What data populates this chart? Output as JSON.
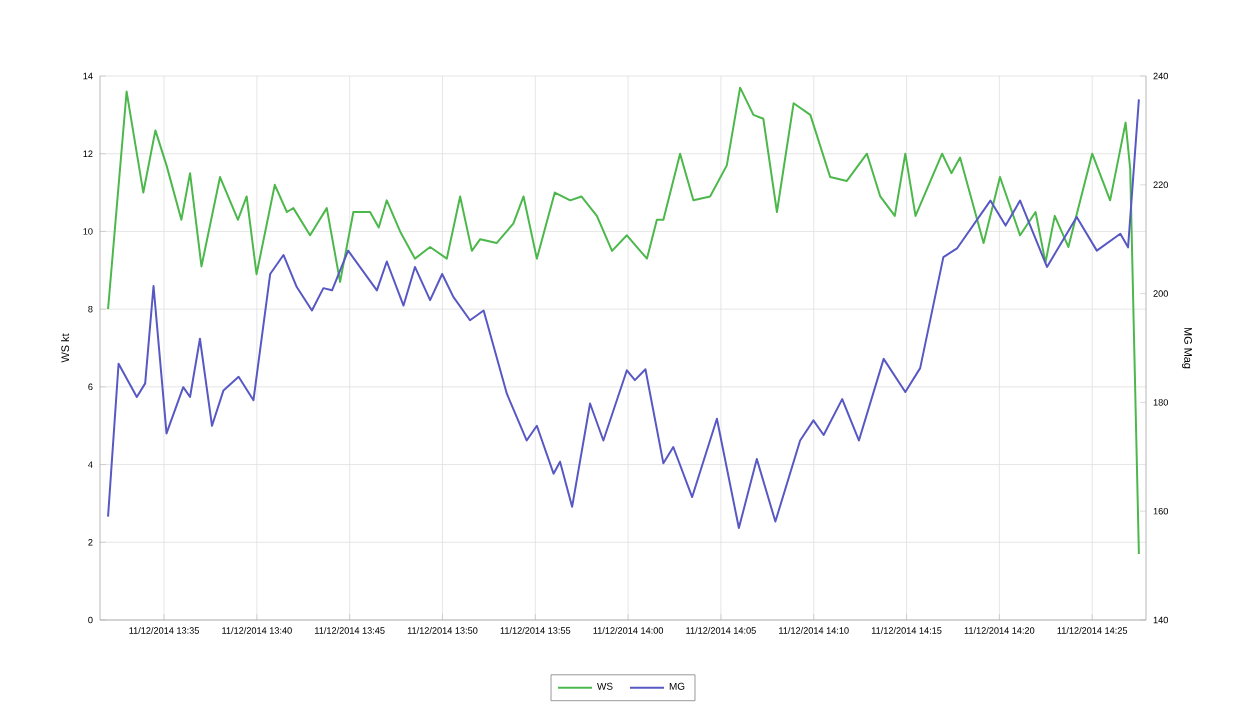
{
  "chart_data": {
    "type": "line",
    "ylabel": "WS kt",
    "y2label": "MG Mag",
    "xlim": [
      "2014-11-12T13:31:33",
      "2014-11-12T14:27:54"
    ],
    "xticks": [
      {
        "value": "2014-11-12T13:35",
        "label": "11/12/2014 13:35"
      },
      {
        "value": "2014-11-12T13:40",
        "label": "11/12/2014 13:40"
      },
      {
        "value": "2014-11-12T13:45",
        "label": "11/12/2014 13:45"
      },
      {
        "value": "2014-11-12T13:50",
        "label": "11/12/2014 13:50"
      },
      {
        "value": "2014-11-12T13:55",
        "label": "11/12/2014 13:55"
      },
      {
        "value": "2014-11-12T14:00",
        "label": "11/12/2014 14:00"
      },
      {
        "value": "2014-11-12T14:05",
        "label": "11/12/2014 14:05"
      },
      {
        "value": "2014-11-12T14:10",
        "label": "11/12/2014 14:10"
      },
      {
        "value": "2014-11-12T14:15",
        "label": "11/12/2014 14:15"
      },
      {
        "value": "2014-11-12T14:20",
        "label": "11/12/2014 14:20"
      },
      {
        "value": "2014-11-12T14:25",
        "label": "11/12/2014 14:25"
      }
    ],
    "ylim": [
      0,
      14
    ],
    "yticks": [
      0,
      2,
      4,
      6,
      8,
      10,
      12,
      14
    ],
    "y2lim": [
      140,
      240
    ],
    "y2ticks": [
      140,
      160,
      180,
      200,
      220,
      240
    ],
    "grid": true,
    "legend": "bottom",
    "series": [
      {
        "name": "WS",
        "color": "#4cb84c",
        "x": [
          "2014-11-12T13:31:59",
          "2014-11-12T13:32:59",
          "2014-11-12T13:33:53",
          "2014-11-12T13:34:32",
          "2014-11-12T13:35:08",
          "2014-11-12T13:35:56",
          "2014-11-12T13:36:24",
          "2014-11-12T13:37:01",
          "2014-11-12T13:38:01",
          "2014-11-12T13:38:59",
          "2014-11-12T13:39:27",
          "2014-11-12T13:39:59",
          "2014-11-12T13:40:58",
          "2014-11-12T13:41:37",
          "2014-11-12T13:41:58",
          "2014-11-12T13:42:52",
          "2014-11-12T13:43:46",
          "2014-11-12T13:44:29",
          "2014-11-12T13:45:12",
          "2014-11-12T13:46:06",
          "2014-11-12T13:46:34",
          "2014-11-12T13:47:00",
          "2014-11-12T13:47:43",
          "2014-11-12T13:48:31",
          "2014-11-12T13:49:20",
          "2014-11-12T13:50:14",
          "2014-11-12T13:50:57",
          "2014-11-12T13:51:35",
          "2014-11-12T13:52:02",
          "2014-11-12T13:52:55",
          "2014-11-12T13:53:49",
          "2014-11-12T13:54:22",
          "2014-11-12T13:55:05",
          "2014-11-12T13:56:03",
          "2014-11-12T13:56:53",
          "2014-11-12T13:57:29",
          "2014-11-12T13:58:19",
          "2014-11-12T13:59:08",
          "2014-11-12T13:59:56",
          "2014-11-12T14:00:39",
          "2014-11-12T14:01:01",
          "2014-11-12T14:01:33",
          "2014-11-12T14:01:54",
          "2014-11-12T14:02:48",
          "2014-11-12T14:03:31",
          "2014-11-12T14:04:25",
          "2014-11-12T14:05:19",
          "2014-11-12T14:06:02",
          "2014-11-12T14:06:45",
          "2014-11-12T14:07:17",
          "2014-11-12T14:08:01",
          "2014-11-12T14:08:55",
          "2014-11-12T14:09:49",
          "2014-11-12T14:10:53",
          "2014-11-12T14:11:47",
          "2014-11-12T14:12:52",
          "2014-11-12T14:13:35",
          "2014-11-12T14:14:22",
          "2014-11-12T14:14:56",
          "2014-11-12T14:15:29",
          "2014-11-12T14:16:55",
          "2014-11-12T14:17:25",
          "2014-11-12T14:17:53",
          "2014-11-12T14:19:09",
          "2014-11-12T14:20:02",
          "2014-11-12T14:21:07",
          "2014-11-12T14:21:57",
          "2014-11-12T14:22:29",
          "2014-11-12T14:22:59",
          "2014-11-12T14:23:43",
          "2014-11-12T14:25:00",
          "2014-11-12T14:25:58",
          "2014-11-12T14:26:48",
          "2014-11-12T14:27:03",
          "2014-11-12T14:27:31"
        ],
        "values": [
          8.0,
          13.6,
          11.0,
          12.6,
          11.7,
          10.3,
          11.5,
          9.1,
          11.4,
          10.3,
          10.9,
          8.9,
          11.2,
          10.5,
          10.6,
          9.9,
          10.6,
          8.7,
          10.5,
          10.5,
          10.1,
          10.8,
          10.0,
          9.3,
          9.6,
          9.3,
          10.9,
          9.5,
          9.8,
          9.7,
          10.2,
          10.9,
          9.3,
          11.0,
          10.8,
          10.9,
          10.4,
          9.5,
          9.9,
          9.5,
          9.3,
          10.3,
          10.3,
          12.0,
          10.8,
          10.9,
          11.7,
          13.7,
          13.0,
          12.9,
          10.5,
          13.3,
          13.0,
          11.4,
          11.3,
          12.0,
          10.9,
          10.4,
          12.0,
          10.4,
          12.0,
          11.5,
          11.9,
          9.7,
          11.4,
          9.9,
          10.5,
          9.2,
          10.4,
          9.6,
          12.0,
          10.8,
          12.8,
          11.6,
          1.7
        ]
      },
      {
        "name": "MG",
        "color": "#5858c4",
        "axis": "y2",
        "x": [
          "2014-11-12T13:31:59",
          "2014-11-12T13:32:33",
          "2014-11-12T13:33:32",
          "2014-11-12T13:33:59",
          "2014-11-12T13:34:26",
          "2014-11-12T13:35:08",
          "2014-11-12T13:36:02",
          "2014-11-12T13:36:24",
          "2014-11-12T13:36:56",
          "2014-11-12T13:37:35",
          "2014-11-12T13:38:12",
          "2014-11-12T13:39:01",
          "2014-11-12T13:39:49",
          "2014-11-12T13:40:43",
          "2014-11-12T13:41:26",
          "2014-11-12T13:42:09",
          "2014-11-12T13:42:58",
          "2014-11-12T13:43:35",
          "2014-11-12T13:44:03",
          "2014-11-12T13:44:55",
          "2014-11-12T13:46:28",
          "2014-11-12T13:47:00",
          "2014-11-12T13:47:54",
          "2014-11-12T13:48:31",
          "2014-11-12T13:49:20",
          "2014-11-12T13:49:59",
          "2014-11-12T13:50:35",
          "2014-11-12T13:51:29",
          "2014-11-12T13:52:13",
          "2014-11-12T13:53:28",
          "2014-11-12T13:54:32",
          "2014-11-12T13:55:05",
          "2014-11-12T13:55:59",
          "2014-11-12T13:56:20",
          "2014-11-12T13:56:59",
          "2014-11-12T13:57:57",
          "2014-11-12T13:58:40",
          "2014-11-12T13:59:56",
          "2014-11-12T14:00:22",
          "2014-11-12T14:00:56",
          "2014-11-12T14:01:54",
          "2014-11-12T14:02:26",
          "2014-11-12T14:03:27",
          "2014-11-12T14:04:47",
          "2014-11-12T14:05:58",
          "2014-11-12T14:06:56",
          "2014-11-12T14:07:56",
          "2014-11-12T14:09:16",
          "2014-11-12T14:09:59",
          "2014-11-12T14:10:32",
          "2014-11-12T14:11:32",
          "2014-11-12T14:12:26",
          "2014-11-12T14:13:46",
          "2014-11-12T14:14:56",
          "2014-11-12T14:15:44",
          "2014-11-12T14:16:59",
          "2014-11-12T14:17:43",
          "2014-11-12T14:19:31",
          "2014-11-12T14:20:20",
          "2014-11-12T14:21:07",
          "2014-11-12T14:22:34",
          "2014-11-12T14:24:10",
          "2014-11-12T14:25:15",
          "2014-11-12T14:26:31",
          "2014-11-12T14:26:56",
          "2014-11-12T14:27:31"
        ],
        "values": [
          159.0,
          187.1,
          181.0,
          183.5,
          201.4,
          174.3,
          182.8,
          181.0,
          191.7,
          175.7,
          182.2,
          184.7,
          180.4,
          203.6,
          207.1,
          201.2,
          196.9,
          201.0,
          200.6,
          207.9,
          200.6,
          205.9,
          197.8,
          204.9,
          198.8,
          203.6,
          199.4,
          195.1,
          196.9,
          181.6,
          173.0,
          175.7,
          166.9,
          169.1,
          160.8,
          179.8,
          173.0,
          185.9,
          184.1,
          186.1,
          168.8,
          171.8,
          162.6,
          177.0,
          156.9,
          169.6,
          158.1,
          173.0,
          176.7,
          174.0,
          180.6,
          173.0,
          188.0,
          181.9,
          186.3,
          206.7,
          208.3,
          217.1,
          212.5,
          217.1,
          204.9,
          214.1,
          207.9,
          211.0,
          208.5,
          235.7
        ]
      }
    ]
  }
}
